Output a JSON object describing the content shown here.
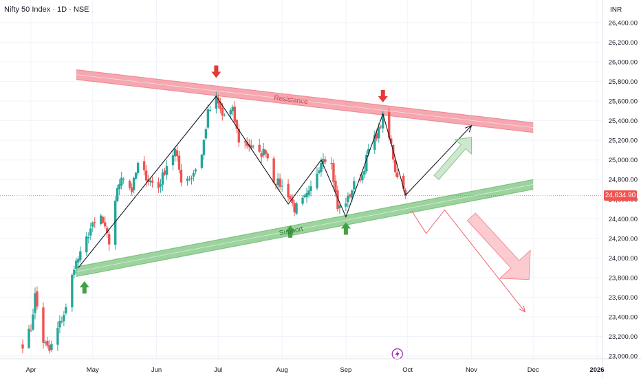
{
  "header": {
    "title": "Nifty 50 Index · 1D · NSE",
    "currency": "INR"
  },
  "last_price": "24,634.90",
  "colors": {
    "up": "#26a69a",
    "down": "#ef5350",
    "resistance": "#f28b95",
    "support": "#7cc47f",
    "marker_down": "#e53935",
    "marker_up": "#43a047",
    "trendline": "#131722"
  },
  "annotations": {
    "resistance_label": "Resistance",
    "support_label": "Support",
    "event_icon": "lightning-icon"
  },
  "chart_data": {
    "type": "candlestick",
    "title": "Nifty 50 Index · 1D · NSE",
    "xlabel": "",
    "ylabel": "",
    "ylim": [
      22950,
      26500
    ],
    "yticks": [
      23000,
      23200,
      23400,
      23600,
      23800,
      24000,
      24200,
      24400,
      24600,
      24800,
      25000,
      25200,
      25400,
      25600,
      25800,
      26000,
      26200,
      26400
    ],
    "ytick_labels": [
      "23,000.00",
      "23,200.00",
      "23,400.00",
      "23,600.00",
      "23,800.00",
      "24,000.00",
      "24,200.00",
      "24,400.00",
      "24,600.00",
      "24,800.00",
      "25,000.00",
      "25,200.00",
      "25,400.00",
      "25,600.00",
      "25,800.00",
      "26,000.00",
      "26,200.00",
      "26,400.00"
    ],
    "xtick_labels": [
      "Apr",
      "May",
      "Jun",
      "Jul",
      "Aug",
      "Sep",
      "Oct",
      "Nov",
      "Dec",
      "2026"
    ],
    "xtick_dates": [
      "2025-04-01",
      "2025-05-01",
      "2025-06-01",
      "2025-07-01",
      "2025-08-01",
      "2025-09-01",
      "2025-10-01",
      "2025-11-01",
      "2025-12-01",
      "2026-01-01"
    ],
    "grid": true,
    "last_value": 24634.9,
    "close_path": [
      [
        "2025-03-28",
        23120
      ],
      [
        "2025-04-01",
        23280
      ],
      [
        "2025-04-03",
        23620
      ],
      [
        "2025-04-07",
        23150
      ],
      [
        "2025-04-10",
        23050
      ],
      [
        "2025-04-15",
        23330
      ],
      [
        "2025-04-18",
        23480
      ],
      [
        "2025-04-22",
        23920
      ],
      [
        "2025-04-25",
        24030
      ],
      [
        "2025-04-30",
        24300
      ],
      [
        "2025-05-05",
        24420
      ],
      [
        "2025-05-09",
        24150
      ],
      [
        "2025-05-12",
        24600
      ],
      [
        "2025-05-15",
        24850
      ],
      [
        "2025-05-20",
        24690
      ],
      [
        "2025-05-23",
        24950
      ],
      [
        "2025-05-28",
        24800
      ],
      [
        "2025-06-02",
        24720
      ],
      [
        "2025-06-06",
        24950
      ],
      [
        "2025-06-10",
        25100
      ],
      [
        "2025-06-13",
        24800
      ],
      [
        "2025-06-18",
        24830
      ],
      [
        "2025-06-23",
        25050
      ],
      [
        "2025-06-26",
        25480
      ],
      [
        "2025-06-30",
        25620
      ],
      [
        "2025-07-03",
        25450
      ],
      [
        "2025-07-08",
        25500
      ],
      [
        "2025-07-11",
        25200
      ],
      [
        "2025-07-16",
        25150
      ],
      [
        "2025-07-21",
        25050
      ],
      [
        "2025-07-24",
        25100
      ],
      [
        "2025-07-28",
        24800
      ],
      [
        "2025-07-31",
        24750
      ],
      [
        "2025-08-04",
        24650
      ],
      [
        "2025-08-07",
        24500
      ],
      [
        "2025-08-11",
        24580
      ],
      [
        "2025-08-14",
        24650
      ],
      [
        "2025-08-18",
        24880
      ],
      [
        "2025-08-21",
        25050
      ],
      [
        "2025-08-25",
        24950
      ],
      [
        "2025-08-28",
        24500
      ],
      [
        "2025-09-02",
        24600
      ],
      [
        "2025-09-05",
        24750
      ],
      [
        "2025-09-09",
        24850
      ],
      [
        "2025-09-12",
        25100
      ],
      [
        "2025-09-17",
        25300
      ],
      [
        "2025-09-19",
        25430
      ],
      [
        "2025-09-23",
        25150
      ],
      [
        "2025-09-25",
        24900
      ],
      [
        "2025-09-29",
        24700
      ],
      [
        "2025-09-30",
        24634.9
      ]
    ],
    "pattern_pivots": [
      [
        "2025-04-24",
        23900
      ],
      [
        "2025-06-30",
        25650
      ],
      [
        "2025-08-04",
        24550
      ],
      [
        "2025-08-20",
        25000
      ],
      [
        "2025-09-01",
        24420
      ],
      [
        "2025-09-19",
        25470
      ],
      [
        "2025-09-30",
        24640
      ]
    ],
    "resistance_line": [
      [
        "2025-04-23",
        25870
      ],
      [
        "2025-12-01",
        25330
      ]
    ],
    "support_line": [
      [
        "2025-04-23",
        23860
      ],
      [
        "2025-12-01",
        24750
      ]
    ],
    "projection_up": [
      [
        "2025-09-30",
        24640
      ],
      [
        "2025-11-01",
        25350
      ]
    ],
    "projection_down": [
      [
        "2025-10-03",
        24480
      ],
      [
        "2025-10-10",
        24250
      ],
      [
        "2025-10-19",
        24490
      ],
      [
        "2025-11-27",
        23450
      ]
    ],
    "markers": [
      {
        "date": "2025-06-30",
        "direction": "down",
        "value": 25900
      },
      {
        "date": "2025-09-19",
        "direction": "down",
        "value": 25650
      },
      {
        "date": "2025-04-27",
        "direction": "up",
        "value": 23700
      },
      {
        "date": "2025-08-05",
        "direction": "up",
        "value": 24270
      },
      {
        "date": "2025-09-01",
        "direction": "up",
        "value": 24300
      }
    ],
    "event_date": "2025-09-26"
  }
}
